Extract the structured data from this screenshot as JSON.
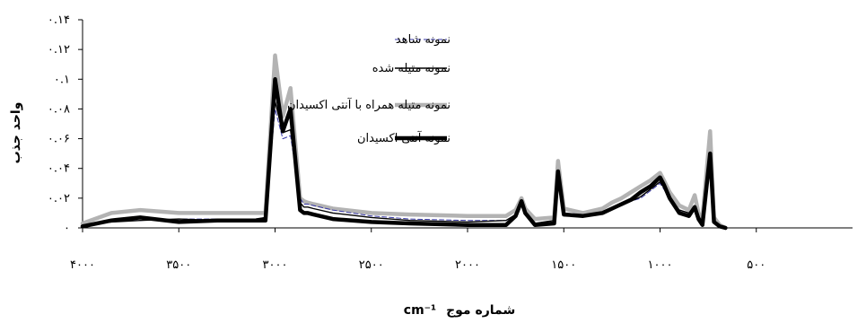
{
  "chart_data": {
    "type": "line",
    "title": "",
    "xlabel": "شماره موج",
    "xlabel_unit": "cm⁻¹",
    "ylabel": "واحد جذب",
    "xlim": [
      4000,
      0
    ],
    "ylim": [
      0,
      0.14
    ],
    "x_ticks": [
      4000,
      3500,
      3000,
      2500,
      2000,
      1500,
      1000,
      500
    ],
    "x_tick_labels": [
      "۴۰۰۰",
      "۳۵۰۰",
      "۳۰۰۰",
      "۲۵۰۰",
      "۲۰۰۰",
      "۱۵۰۰",
      "۱۰۰۰",
      "۵۰۰"
    ],
    "y_ticks": [
      0,
      0.02,
      0.04,
      0.06,
      0.08,
      0.1,
      0.12,
      0.14
    ],
    "y_tick_labels": [
      "۰",
      "۰.۰۲",
      "۰.۰۴",
      "۰.۰۶",
      "۰.۰۸",
      "۰.۱",
      "۰.۱۲",
      "۰.۱۴"
    ],
    "grid": false,
    "legend_position": "top-center",
    "series": [
      {
        "name": "نمونه شاهد",
        "color": "#3a3aa8",
        "style": "dashed",
        "x": [
          4000,
          3850,
          3700,
          3500,
          3300,
          3100,
          3050,
          3000,
          2960,
          2920,
          2870,
          2850,
          2830,
          2800,
          2700,
          2500,
          2300,
          2000,
          1800,
          1750,
          1720,
          1700,
          1650,
          1550,
          1530,
          1500,
          1400,
          1300,
          1250,
          1200,
          1150,
          1100,
          1050,
          1000,
          980,
          950,
          900,
          850,
          820,
          800,
          780,
          740,
          720,
          690,
          660
        ],
        "y": [
          0.002,
          0.005,
          0.005,
          0.006,
          0.006,
          0.006,
          0.007,
          0.08,
          0.06,
          0.062,
          0.02,
          0.016,
          0.016,
          0.015,
          0.012,
          0.008,
          0.006,
          0.005,
          0.005,
          0.008,
          0.015,
          0.01,
          0.003,
          0.005,
          0.035,
          0.01,
          0.009,
          0.01,
          0.013,
          0.016,
          0.018,
          0.02,
          0.025,
          0.03,
          0.026,
          0.02,
          0.012,
          0.01,
          0.014,
          0.008,
          0.004,
          0.045,
          0.005,
          0.001,
          0.0
        ]
      },
      {
        "name": "نمونه متیله شده",
        "color": "#000000",
        "style": "thin",
        "x": [
          4000,
          3850,
          3700,
          3500,
          3300,
          3100,
          3050,
          3000,
          2960,
          2920,
          2870,
          2850,
          2830,
          2800,
          2700,
          2500,
          2300,
          2000,
          1800,
          1750,
          1720,
          1700,
          1650,
          1550,
          1530,
          1500,
          1400,
          1300,
          1250,
          1200,
          1150,
          1100,
          1050,
          1000,
          980,
          950,
          900,
          850,
          820,
          800,
          780,
          740,
          720,
          690,
          660
        ],
        "y": [
          0.002,
          0.004,
          0.005,
          0.006,
          0.005,
          0.006,
          0.007,
          0.085,
          0.064,
          0.066,
          0.017,
          0.014,
          0.014,
          0.013,
          0.01,
          0.007,
          0.005,
          0.004,
          0.005,
          0.009,
          0.016,
          0.01,
          0.003,
          0.005,
          0.037,
          0.01,
          0.008,
          0.01,
          0.013,
          0.015,
          0.018,
          0.021,
          0.026,
          0.031,
          0.027,
          0.02,
          0.012,
          0.01,
          0.015,
          0.008,
          0.004,
          0.047,
          0.005,
          0.001,
          0.0
        ]
      },
      {
        "name": "نمونه متیله همراه با آنتی اکسیدان",
        "color": "#b3b3b3",
        "style": "thick",
        "x": [
          4000,
          3850,
          3700,
          3500,
          3300,
          3100,
          3050,
          3000,
          2960,
          2920,
          2870,
          2850,
          2830,
          2800,
          2700,
          2500,
          2300,
          2000,
          1800,
          1750,
          1720,
          1700,
          1650,
          1550,
          1530,
          1500,
          1400,
          1300,
          1250,
          1200,
          1150,
          1100,
          1050,
          1000,
          980,
          950,
          900,
          850,
          820,
          800,
          780,
          740,
          720,
          690,
          660
        ],
        "y": [
          0.003,
          0.01,
          0.012,
          0.01,
          0.01,
          0.01,
          0.01,
          0.116,
          0.075,
          0.094,
          0.02,
          0.018,
          0.017,
          0.016,
          0.013,
          0.01,
          0.009,
          0.008,
          0.008,
          0.012,
          0.02,
          0.013,
          0.006,
          0.007,
          0.045,
          0.013,
          0.01,
          0.013,
          0.017,
          0.02,
          0.024,
          0.028,
          0.032,
          0.037,
          0.032,
          0.024,
          0.015,
          0.012,
          0.022,
          0.01,
          0.006,
          0.065,
          0.007,
          0.002,
          0.0
        ]
      },
      {
        "name": "نمونه آنتی اکسیدان",
        "color": "#000000",
        "style": "thick",
        "x": [
          4000,
          3850,
          3700,
          3500,
          3300,
          3100,
          3050,
          3000,
          2960,
          2920,
          2870,
          2850,
          2830,
          2800,
          2700,
          2500,
          2300,
          2000,
          1800,
          1750,
          1720,
          1700,
          1650,
          1550,
          1530,
          1500,
          1400,
          1300,
          1250,
          1200,
          1150,
          1100,
          1050,
          1000,
          980,
          950,
          900,
          850,
          820,
          800,
          780,
          740,
          720,
          690,
          660
        ],
        "y": [
          0.001,
          0.005,
          0.007,
          0.004,
          0.005,
          0.005,
          0.005,
          0.1,
          0.065,
          0.08,
          0.012,
          0.01,
          0.01,
          0.009,
          0.006,
          0.004,
          0.003,
          0.002,
          0.002,
          0.008,
          0.018,
          0.01,
          0.002,
          0.003,
          0.038,
          0.009,
          0.008,
          0.01,
          0.013,
          0.016,
          0.019,
          0.024,
          0.028,
          0.034,
          0.029,
          0.02,
          0.01,
          0.008,
          0.014,
          0.006,
          0.002,
          0.05,
          0.004,
          0.001,
          0.0
        ]
      }
    ]
  }
}
